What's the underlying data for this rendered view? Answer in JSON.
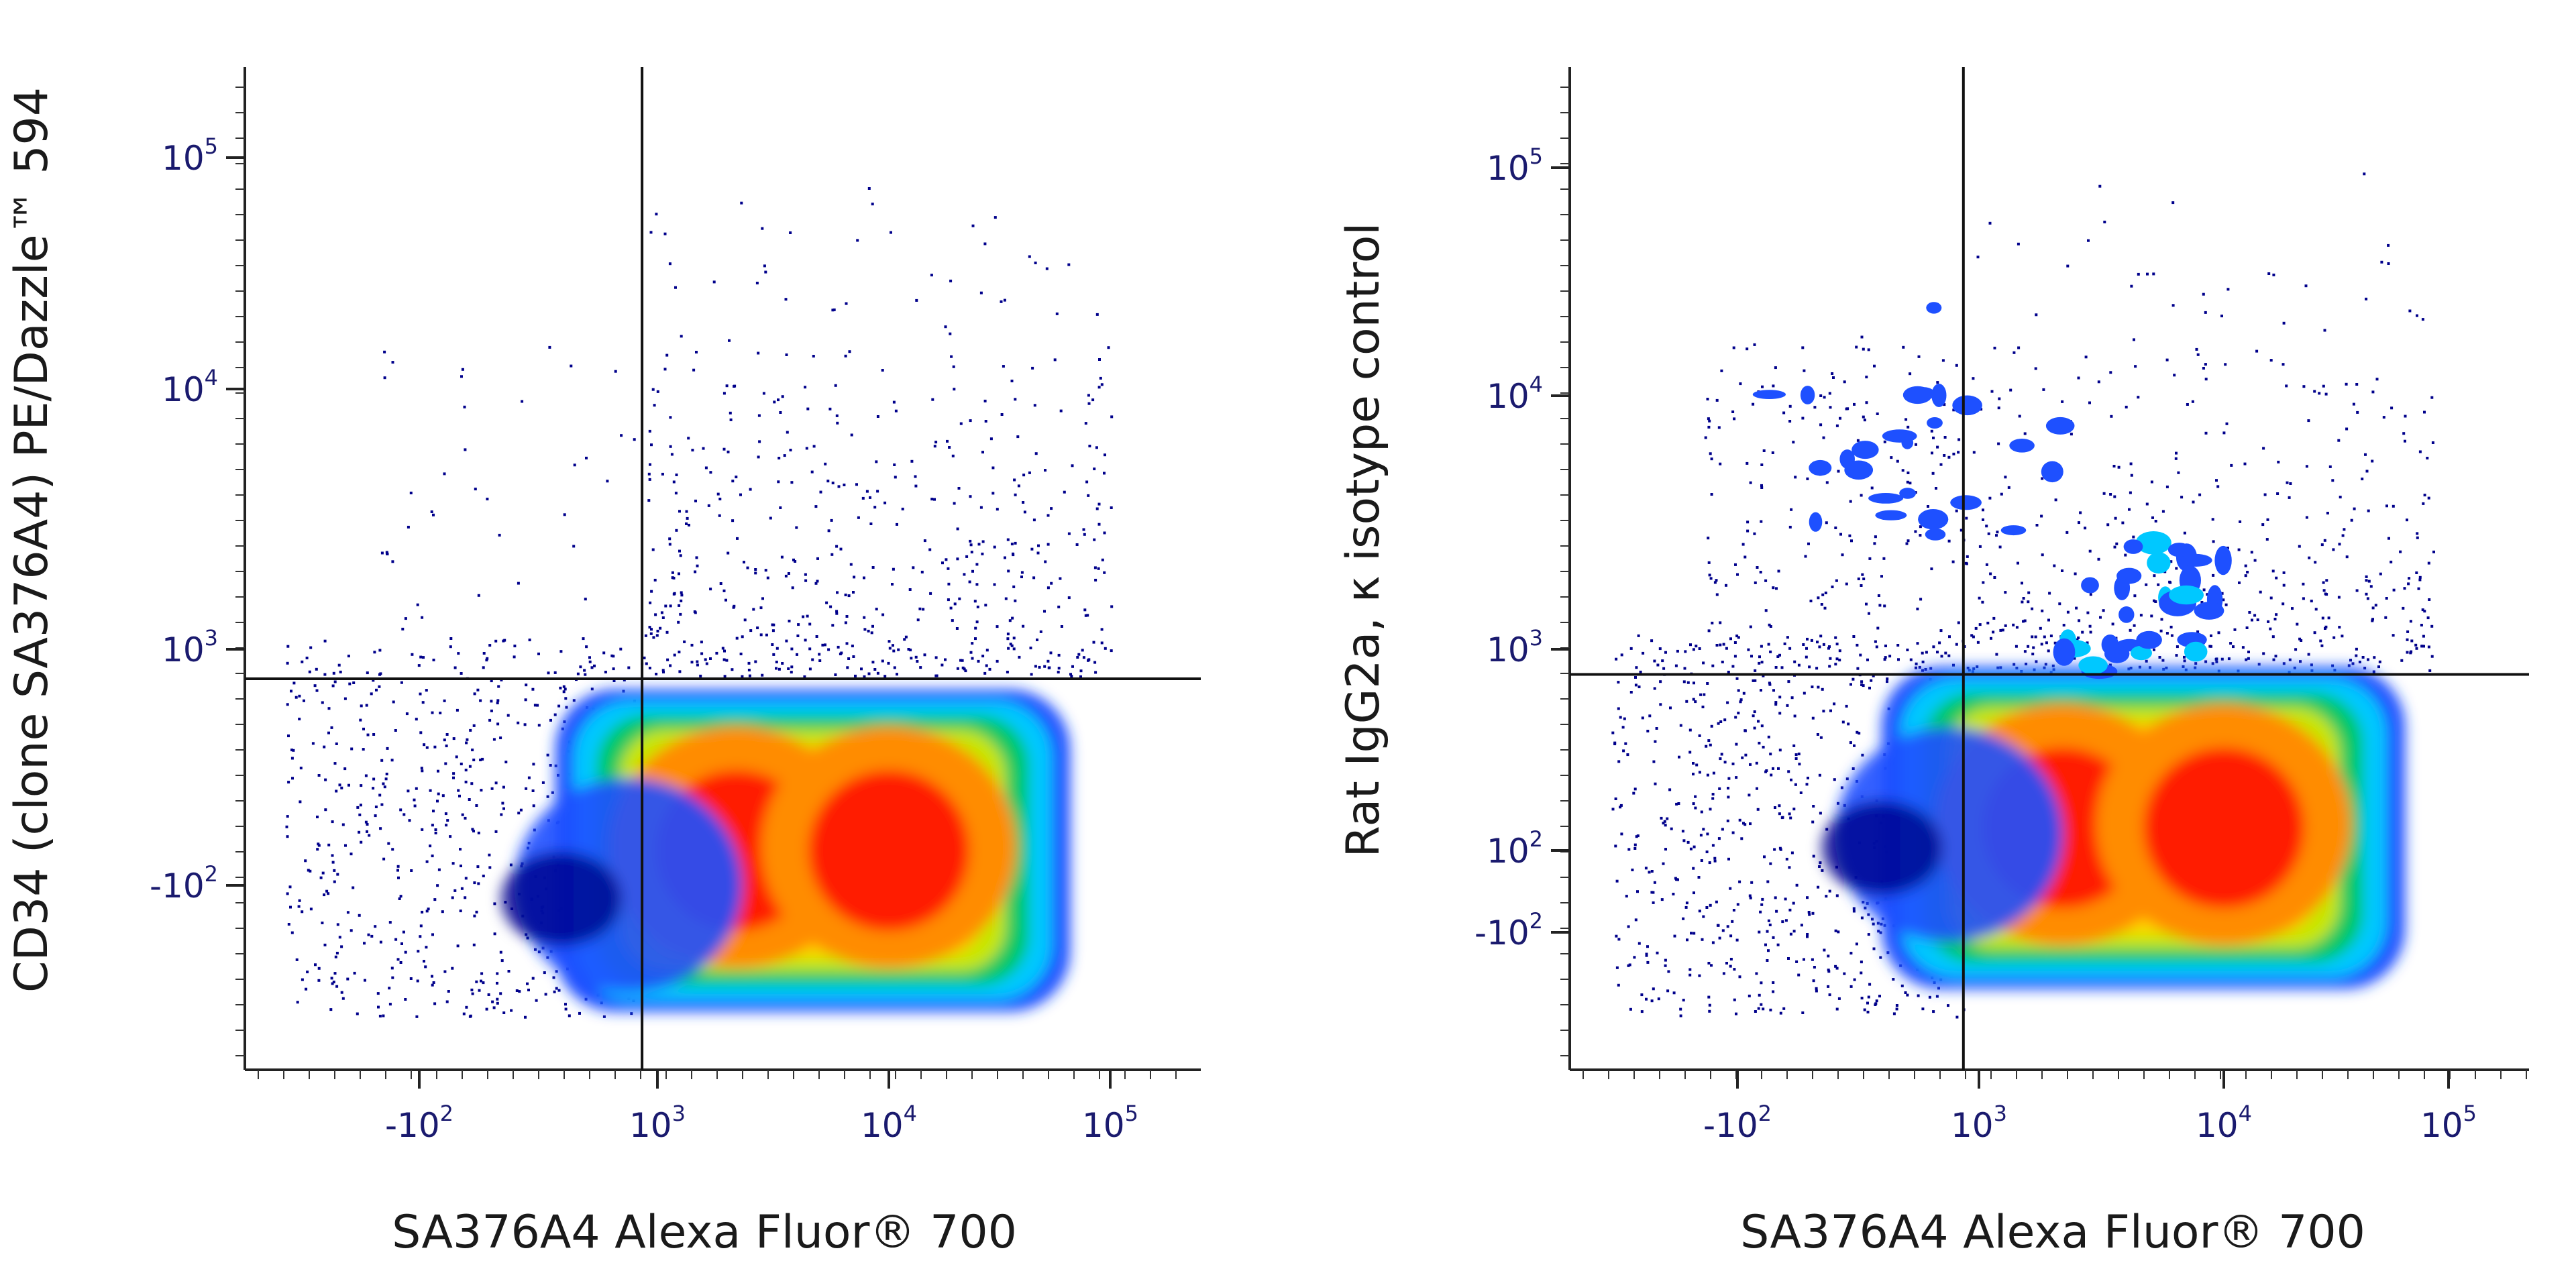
{
  "chart_data": [
    {
      "type": "scatter",
      "subtype": "flow-cytometry-density-plot",
      "xlabel": "SA376A4 Alexa Fluor® 700",
      "ylabel": "CD34 (clone SA376A4) PE/Dazzle™ 594",
      "x_scale": "biexponential",
      "y_scale": "biexponential",
      "x_ticks": [
        {
          "value": -100,
          "base": "-10",
          "exp": "2"
        },
        {
          "value": 1000,
          "base": "10",
          "exp": "3"
        },
        {
          "value": 10000,
          "base": "10",
          "exp": "4"
        },
        {
          "value": 100000,
          "base": "10",
          "exp": "5"
        }
      ],
      "y_ticks": [
        {
          "value": -100,
          "base": "-10",
          "exp": "2"
        },
        {
          "value": 1000,
          "base": "10",
          "exp": "3"
        },
        {
          "value": 10000,
          "base": "10",
          "exp": "4"
        },
        {
          "value": 100000,
          "base": "10",
          "exp": "5"
        }
      ],
      "quadrant_gate": {
        "x": 700,
        "y": 750
      },
      "populations": [
        {
          "name": "main-left-lobe",
          "x_center": 2200,
          "y_center": 150,
          "density": "high"
        },
        {
          "name": "main-right-lobe",
          "x_center": 10000,
          "y_center": 150,
          "density": "high"
        },
        {
          "name": "negative-tail",
          "x_center": 200,
          "y_center": 100,
          "density": "medium"
        },
        {
          "name": "sparse-upper-events",
          "x_center": 8000,
          "y_center": 3000,
          "density": "low"
        }
      ],
      "density_colors": [
        "#00008b",
        "#1e50ff",
        "#00c8ff",
        "#00c864",
        "#c8e600",
        "#ffd700",
        "#ff8c00",
        "#ff1e00"
      ]
    },
    {
      "type": "scatter",
      "subtype": "flow-cytometry-density-plot",
      "xlabel": "SA376A4 Alexa Fluor® 700",
      "ylabel": "Rat IgG2a, κ isotype control",
      "x_scale": "biexponential",
      "y_scale": "biexponential",
      "x_ticks": [
        {
          "value": -100,
          "base": "-10",
          "exp": "2"
        },
        {
          "value": 1000,
          "base": "10",
          "exp": "3"
        },
        {
          "value": 10000,
          "base": "10",
          "exp": "4"
        },
        {
          "value": 100000,
          "base": "10",
          "exp": "5"
        }
      ],
      "y_ticks": [
        {
          "value": -100,
          "base": "-10",
          "exp": "2"
        },
        {
          "value": 100,
          "base": "10",
          "exp": "2"
        },
        {
          "value": 1000,
          "base": "10",
          "exp": "3"
        },
        {
          "value": 10000,
          "base": "10",
          "exp": "4"
        },
        {
          "value": 100000,
          "base": "10",
          "exp": "5"
        }
      ],
      "quadrant_gate": {
        "x": 700,
        "y": 750
      },
      "populations": [
        {
          "name": "main-left-lobe",
          "x_center": 2200,
          "y_center": 140,
          "density": "high"
        },
        {
          "name": "main-right-lobe",
          "x_center": 10000,
          "y_center": 140,
          "density": "high"
        },
        {
          "name": "negative-tail",
          "x_center": 200,
          "y_center": 120,
          "density": "medium"
        },
        {
          "name": "upper-left-clusters",
          "x_center": 300,
          "y_center": 6000,
          "density": "medium"
        },
        {
          "name": "sparse-upper-events",
          "x_center": 8000,
          "y_center": 5000,
          "density": "low"
        }
      ],
      "density_colors": [
        "#00008b",
        "#1e50ff",
        "#00c8ff",
        "#00c864",
        "#c8e600",
        "#ffd700",
        "#ff8c00",
        "#ff1e00"
      ]
    }
  ]
}
